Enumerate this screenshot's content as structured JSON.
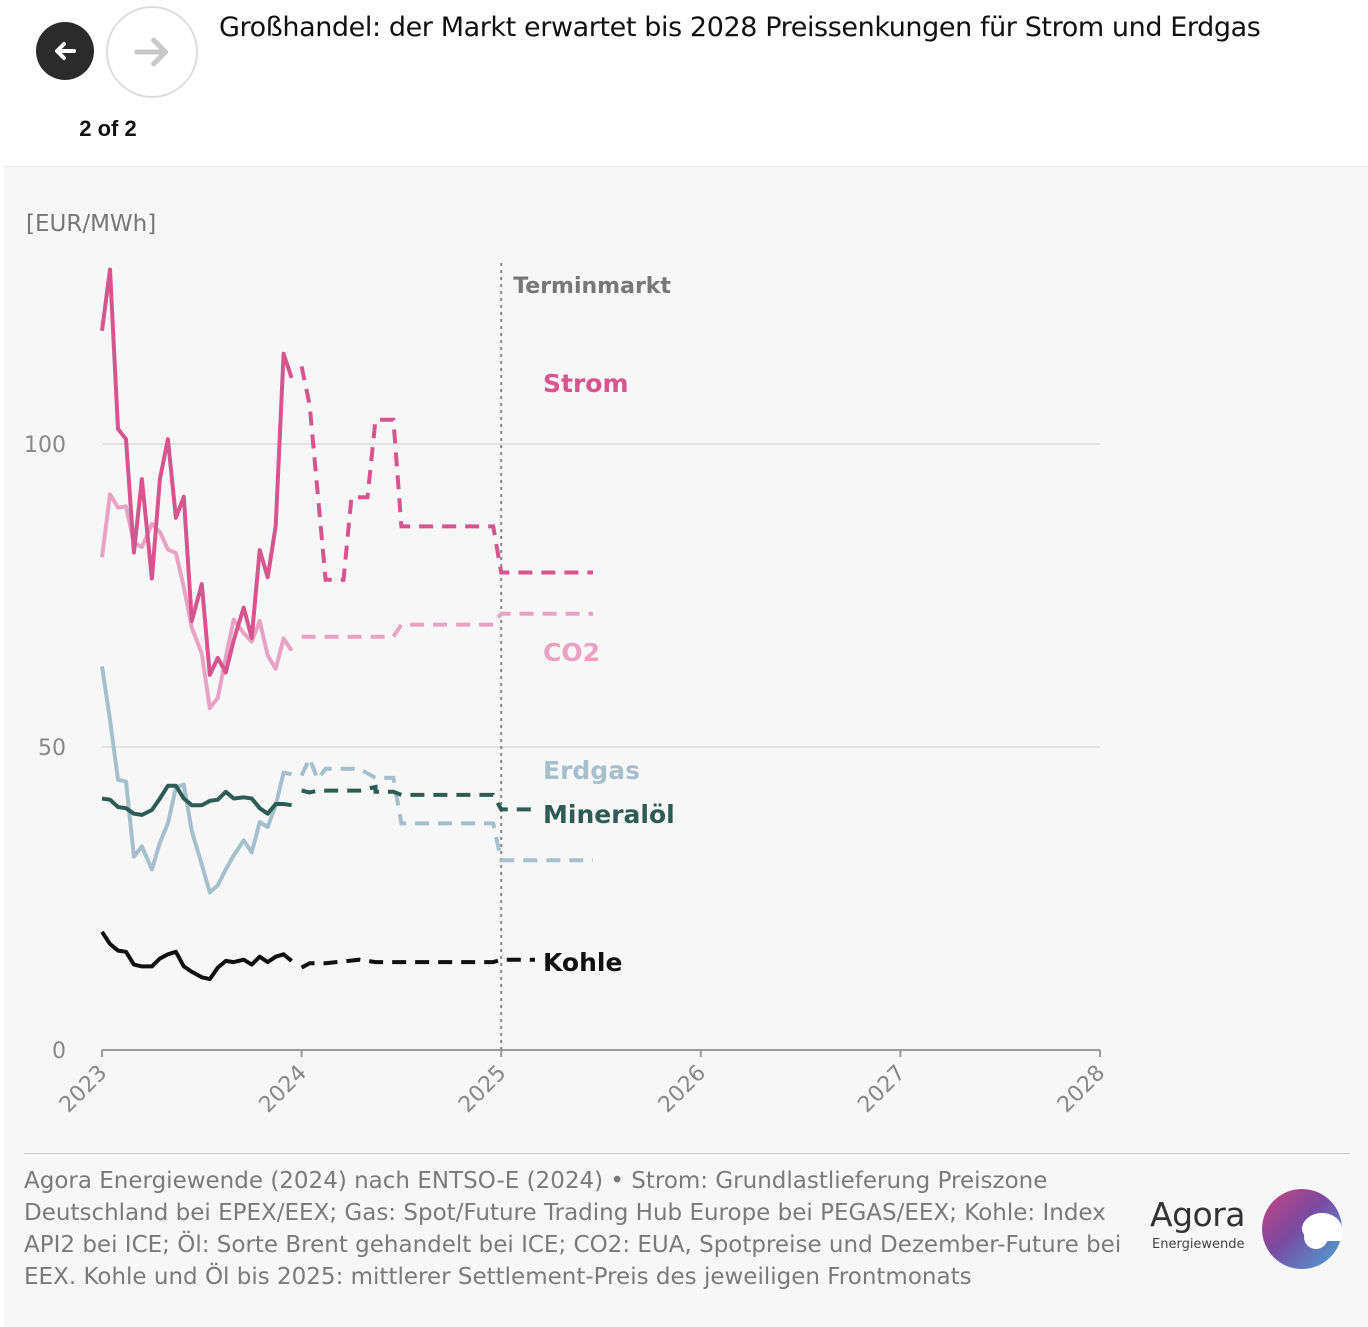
{
  "nav": {
    "pager": "2 of 2",
    "back_icon": "arrow-left-icon",
    "forward_icon": "arrow-right-icon"
  },
  "title": "Großhandel: der Markt erwartet bis 2028 Preissenkungen für Strom und Erdgas",
  "source": "Agora Energiewende (2024) nach ENTSO-E (2024) • Strom: Grundlastlieferung Preiszone Deutschland bei EPEX/EEX; Gas: Spot/Future Trading Hub Europe bei PEGAS/EEX; Kohle: Index API2 bei ICE; Öl: Sorte Brent gehandelt bei ICE; CO2: EUA, Spotpreise und Dezember-Future bei EEX. Kohle und Öl bis 2025: mittlerer Settlement-Preis des jeweiligen Frontmonats",
  "logo": {
    "name": "Agora",
    "sub": "Energiewende"
  },
  "chart_data": {
    "type": "line",
    "ylabel": "[EUR/MWh]",
    "xlim": [
      2023,
      2028
    ],
    "ylim": [
      0,
      130
    ],
    "yticks": [
      0,
      50,
      100
    ],
    "xticks": [
      "2023",
      "2024",
      "2025",
      "2026",
      "2027",
      "2028"
    ],
    "grid": "horizontal",
    "annotation": {
      "text": "Terminmarkt",
      "x": 2025
    },
    "colors": {
      "strom": "#d6558f",
      "co2": "#e8a2c4",
      "erdgas": "#a6bfcd",
      "oel": "#2e5c55",
      "kohle": "#111111"
    },
    "series": [
      {
        "name": "Strom",
        "key": "strom",
        "spot": [
          [
            2023.0,
            118.7
          ],
          [
            2023.04,
            128.8
          ],
          [
            2023.08,
            102.5
          ],
          [
            2023.12,
            100.8
          ],
          [
            2023.16,
            82.1
          ],
          [
            2023.2,
            94.2
          ],
          [
            2023.25,
            77.8
          ],
          [
            2023.29,
            94.2
          ],
          [
            2023.33,
            100.8
          ],
          [
            2023.37,
            87.8
          ],
          [
            2023.41,
            91.3
          ],
          [
            2023.45,
            70.8
          ],
          [
            2023.5,
            76.9
          ],
          [
            2023.54,
            61.9
          ],
          [
            2023.58,
            64.7
          ],
          [
            2023.62,
            62.3
          ],
          [
            2023.66,
            67.6
          ],
          [
            2023.71,
            73.0
          ],
          [
            2023.75,
            68.0
          ],
          [
            2023.79,
            82.5
          ],
          [
            2023.83,
            78.0
          ],
          [
            2023.87,
            86.5
          ],
          [
            2023.91,
            114.9
          ],
          [
            2023.95,
            110.9
          ]
        ],
        "futures": [
          [
            2024.0,
            112.8
          ],
          [
            2024.04,
            106.5
          ],
          [
            2024.12,
            77.6
          ],
          [
            2024.21,
            77.6
          ],
          [
            2024.25,
            91.2
          ],
          [
            2024.33,
            91.2
          ],
          [
            2024.37,
            104.0
          ],
          [
            2024.46,
            104.0
          ],
          [
            2024.5,
            86.4
          ],
          [
            2024.96,
            86.4
          ],
          [
            2025.0,
            78.8
          ],
          [
            2025.46,
            78.8
          ]
        ]
      },
      {
        "name": "CO2",
        "key": "co2",
        "spot": [
          [
            2023.0,
            81.3
          ],
          [
            2023.04,
            91.7
          ],
          [
            2023.08,
            89.5
          ],
          [
            2023.12,
            89.7
          ],
          [
            2023.16,
            83.7
          ],
          [
            2023.2,
            83.0
          ],
          [
            2023.25,
            86.8
          ],
          [
            2023.29,
            85.5
          ],
          [
            2023.33,
            82.6
          ],
          [
            2023.37,
            82.0
          ],
          [
            2023.41,
            76.4
          ],
          [
            2023.45,
            69.7
          ],
          [
            2023.5,
            65.4
          ],
          [
            2023.54,
            56.4
          ],
          [
            2023.58,
            58.1
          ],
          [
            2023.62,
            64.8
          ],
          [
            2023.66,
            71.0
          ],
          [
            2023.71,
            68.8
          ],
          [
            2023.75,
            67.4
          ],
          [
            2023.79,
            70.8
          ],
          [
            2023.83,
            65.1
          ],
          [
            2023.87,
            62.9
          ],
          [
            2023.91,
            67.9
          ],
          [
            2023.95,
            65.9
          ]
        ],
        "futures": [
          [
            2024.0,
            68.2
          ],
          [
            2024.46,
            68.2
          ],
          [
            2024.5,
            70.2
          ],
          [
            2024.96,
            70.2
          ],
          [
            2025.0,
            72.0
          ],
          [
            2025.46,
            72.0
          ]
        ]
      },
      {
        "name": "Erdgas",
        "key": "erdgas",
        "spot": [
          [
            2023.0,
            63.3
          ],
          [
            2023.04,
            54.5
          ],
          [
            2023.08,
            44.6
          ],
          [
            2023.12,
            44.3
          ],
          [
            2023.16,
            31.9
          ],
          [
            2023.2,
            33.6
          ],
          [
            2023.25,
            29.8
          ],
          [
            2023.29,
            34.2
          ],
          [
            2023.33,
            37.4
          ],
          [
            2023.37,
            43.3
          ],
          [
            2023.41,
            43.8
          ],
          [
            2023.45,
            36.1
          ],
          [
            2023.5,
            30.6
          ],
          [
            2023.54,
            26.0
          ],
          [
            2023.58,
            27.2
          ],
          [
            2023.62,
            29.8
          ],
          [
            2023.66,
            32.1
          ],
          [
            2023.71,
            34.6
          ],
          [
            2023.75,
            32.6
          ],
          [
            2023.79,
            37.6
          ],
          [
            2023.83,
            36.8
          ],
          [
            2023.87,
            40.4
          ],
          [
            2023.91,
            45.8
          ],
          [
            2023.95,
            45.5
          ]
        ],
        "futures": [
          [
            2024.0,
            45.3
          ],
          [
            2024.04,
            48.1
          ],
          [
            2024.08,
            44.7
          ],
          [
            2024.12,
            46.4
          ],
          [
            2024.29,
            46.4
          ],
          [
            2024.37,
            44.9
          ],
          [
            2024.46,
            44.9
          ],
          [
            2024.5,
            37.4
          ],
          [
            2024.96,
            37.4
          ],
          [
            2025.0,
            31.3
          ],
          [
            2025.46,
            31.3
          ]
        ]
      },
      {
        "name": "Mineralöl",
        "key": "oel",
        "spot": [
          [
            2023.0,
            41.5
          ],
          [
            2023.04,
            41.3
          ],
          [
            2023.08,
            40.1
          ],
          [
            2023.12,
            39.9
          ],
          [
            2023.16,
            39.0
          ],
          [
            2023.2,
            38.8
          ],
          [
            2023.25,
            39.6
          ],
          [
            2023.29,
            41.5
          ],
          [
            2023.33,
            43.6
          ],
          [
            2023.37,
            43.6
          ],
          [
            2023.41,
            41.5
          ],
          [
            2023.45,
            40.4
          ],
          [
            2023.5,
            40.4
          ],
          [
            2023.54,
            41.1
          ],
          [
            2023.58,
            41.3
          ],
          [
            2023.62,
            42.6
          ],
          [
            2023.66,
            41.5
          ],
          [
            2023.71,
            41.7
          ],
          [
            2023.75,
            41.5
          ],
          [
            2023.79,
            39.9
          ],
          [
            2023.83,
            39.0
          ],
          [
            2023.87,
            40.6
          ],
          [
            2023.91,
            40.6
          ],
          [
            2023.95,
            40.4
          ]
        ],
        "futures": [
          [
            2024.0,
            42.8
          ],
          [
            2024.04,
            42.5
          ],
          [
            2024.08,
            42.8
          ],
          [
            2024.29,
            42.8
          ],
          [
            2024.37,
            43.4
          ],
          [
            2024.37,
            42.6
          ],
          [
            2024.46,
            42.6
          ],
          [
            2024.5,
            42.1
          ],
          [
            2024.96,
            42.1
          ],
          [
            2025.0,
            39.7
          ],
          [
            2025.46,
            39.7
          ]
        ]
      },
      {
        "name": "Kohle",
        "key": "kohle",
        "spot": [
          [
            2023.0,
            19.5
          ],
          [
            2023.04,
            17.5
          ],
          [
            2023.08,
            16.4
          ],
          [
            2023.12,
            16.2
          ],
          [
            2023.16,
            14.1
          ],
          [
            2023.2,
            13.8
          ],
          [
            2023.25,
            13.8
          ],
          [
            2023.29,
            15.1
          ],
          [
            2023.33,
            15.8
          ],
          [
            2023.37,
            16.2
          ],
          [
            2023.41,
            13.8
          ],
          [
            2023.45,
            12.9
          ],
          [
            2023.5,
            12.0
          ],
          [
            2023.54,
            11.7
          ],
          [
            2023.58,
            13.6
          ],
          [
            2023.62,
            14.7
          ],
          [
            2023.66,
            14.5
          ],
          [
            2023.71,
            14.9
          ],
          [
            2023.75,
            14.1
          ],
          [
            2023.79,
            15.4
          ],
          [
            2023.83,
            14.5
          ],
          [
            2023.87,
            15.4
          ],
          [
            2023.91,
            15.8
          ],
          [
            2023.95,
            14.7
          ]
        ],
        "futures": [
          [
            2024.0,
            13.6
          ],
          [
            2024.04,
            14.3
          ],
          [
            2024.12,
            14.3
          ],
          [
            2024.29,
            14.9
          ],
          [
            2024.37,
            14.5
          ],
          [
            2024.46,
            14.5
          ],
          [
            2024.96,
            14.5
          ],
          [
            2025.0,
            14.9
          ],
          [
            2025.46,
            14.9
          ]
        ]
      }
    ],
    "labels": [
      {
        "series": "strom",
        "text": "Strom"
      },
      {
        "series": "co2",
        "text": "CO2"
      },
      {
        "series": "erdgas",
        "text": "Erdgas"
      },
      {
        "series": "oel",
        "text": "Mineralöl"
      },
      {
        "series": "kohle",
        "text": "Kohle"
      }
    ]
  }
}
